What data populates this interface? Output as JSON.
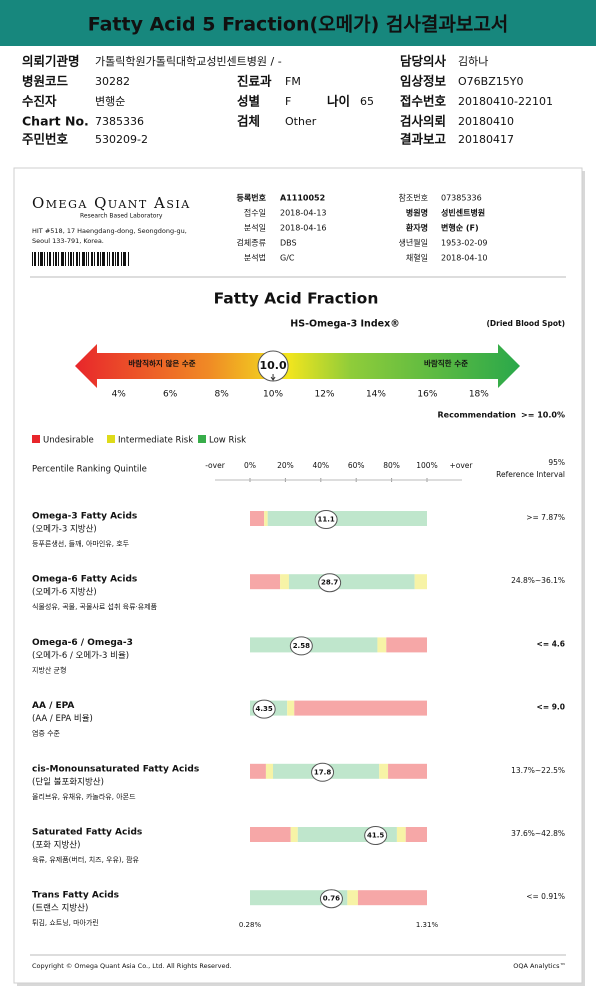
{
  "header": {
    "title": "Fatty Acid 5 Fraction(오메가) 검사결과보고서"
  },
  "info": [
    {
      "label": "의뢰기관명",
      "value": "가톨릭학원가톨릭대학교성빈센트병원 / -"
    },
    {
      "label": "담당의사",
      "value": "김하나"
    },
    {
      "label": "병원코드",
      "value": "30282"
    },
    {
      "label": "진료과",
      "value": "FM"
    },
    {
      "label": "임상정보",
      "value": "O76BZ15Y0"
    },
    {
      "label": "수진자",
      "value": "변행순"
    },
    {
      "label": "성별",
      "value": "F"
    },
    {
      "label": "나이",
      "value": "65"
    },
    {
      "label": "접수번호",
      "value": "20180410-22101"
    },
    {
      "label": "Chart No.",
      "value": "7385336"
    },
    {
      "label": "검체",
      "value": "Other"
    },
    {
      "label": "검사의뢰",
      "value": "20180410"
    },
    {
      "label": "주민번호",
      "value": "530209-2"
    },
    {
      "label": "결과보고",
      "value": "20180417"
    }
  ],
  "report": {
    "logo": "Omega Quant Asia",
    "tagline": "Research Based Laboratory",
    "address": [
      "HIT #518, 17 Haengdang-dong, Seongdong-gu,",
      "Seoul 133-791, Korea."
    ],
    "fields_left": [
      {
        "label": "등록번호",
        "value": "A1110052"
      },
      {
        "label": "접수일",
        "value": "2018-04-13"
      },
      {
        "label": "분석일",
        "value": "2018-04-16"
      },
      {
        "label": "검체종류",
        "value": "DBS"
      },
      {
        "label": "분석법",
        "value": "G/C"
      }
    ],
    "fields_right": [
      {
        "label": "참조번호",
        "value": "07385336"
      },
      {
        "label": "병원명",
        "value": "성빈센트병원"
      },
      {
        "label": "환자명",
        "value": "변행순 (F)"
      },
      {
        "label": "생년월일",
        "value": "1953-02-09"
      },
      {
        "label": "채혈일",
        "value": "2018-04-10"
      }
    ],
    "title": "Fatty Acid Fraction",
    "index_title": "HS-Omega-3 Index®",
    "specimen": "(Dried Blood Spot)",
    "index": {
      "value": 10,
      "value_label": "10.0",
      "xlim": [
        2.3,
        19.6
      ],
      "ticks": [
        {
          "value": 4,
          "label": "4%"
        },
        {
          "value": 6,
          "label": "6%"
        },
        {
          "value": 8,
          "label": "8%"
        },
        {
          "value": 10,
          "label": "10%"
        },
        {
          "value": 12,
          "label": "12%"
        },
        {
          "value": 14,
          "label": "14%"
        },
        {
          "value": 16,
          "label": "16%"
        },
        {
          "value": 18,
          "label": "18%"
        }
      ],
      "low_label": "바람직하지 않은 수준",
      "high_label": "바람직한 수준"
    },
    "recommendation": {
      "label": "Recommendation",
      "value": ">= 10.0%"
    },
    "legend": [
      {
        "name": "Undesirable",
        "color": "#e8262b"
      },
      {
        "name": "Intermediate Risk",
        "color": "#dedb1a"
      },
      {
        "name": "Low Risk",
        "color": "#38ad4a"
      }
    ],
    "percentile_scale": {
      "title": "Percentile Ranking Quintile",
      "lower_label": "-over",
      "upper_label": "+over",
      "ticks": [
        {
          "value": 0,
          "label": "0%"
        },
        {
          "value": 20,
          "label": "20%"
        },
        {
          "value": 40,
          "label": "40%"
        },
        {
          "value": 60,
          "label": "60%"
        },
        {
          "value": 80,
          "label": "80%"
        },
        {
          "value": 100,
          "label": "100%"
        }
      ],
      "reference_title": [
        "95%",
        "Reference Interval"
      ]
    },
    "rows": [
      {
        "name": "Omega-3 Fatty Acids",
        "name_ko": "(오메가-3 지방산)",
        "foods": "등푸른생선, 들깨, 아마인유, 호두",
        "value": "11.1",
        "percentile": 43,
        "reference": ">= 7.87%",
        "zones": [
          {
            "color": "#f6a7a7",
            "from": 0,
            "to": 8
          },
          {
            "color": "#f7f3a6",
            "from": 8,
            "to": 10
          },
          {
            "color": "#bfe6cc",
            "from": 10,
            "to": 100
          }
        ]
      },
      {
        "name": "Omega-6 Fatty Acids",
        "name_ko": "(오메가-6 지방산)",
        "foods": "식물성유, 곡물, 곡물사료 섭취 육류·유제품",
        "value": "28.7",
        "percentile": 45,
        "reference": "24.8%~36.1%",
        "zones": [
          {
            "color": "#f6a7a7",
            "from": 0,
            "to": 17
          },
          {
            "color": "#f7f3a6",
            "from": 17,
            "to": 22
          },
          {
            "color": "#bfe6cc",
            "from": 22,
            "to": 93
          },
          {
            "color": "#f7f3a6",
            "from": 93,
            "to": 100
          }
        ]
      },
      {
        "name": "Omega-6 / Omega-3",
        "name_ko": "(오메가-6 / 오메가-3 비율)",
        "foods": "지방산 균형",
        "value": "2.58",
        "percentile": 29,
        "reference": "<= 4.6",
        "zones": [
          {
            "color": "#bfe6cc",
            "from": 0,
            "to": 72
          },
          {
            "color": "#f7f3a6",
            "from": 72,
            "to": 77
          },
          {
            "color": "#f6a7a7",
            "from": 77,
            "to": 100
          }
        ]
      },
      {
        "name": "AA / EPA",
        "name_ko": "(AA / EPA 비율)",
        "foods": "염증 수준",
        "value": "4.35",
        "percentile": 8,
        "reference": "<= 9.0",
        "zones": [
          {
            "color": "#bfe6cc",
            "from": 0,
            "to": 21
          },
          {
            "color": "#f7f3a6",
            "from": 21,
            "to": 25
          },
          {
            "color": "#f6a7a7",
            "from": 25,
            "to": 100
          }
        ]
      },
      {
        "name": "cis-Monounsaturated Fatty Acids",
        "name_ko": "(단일 불포화지방산)",
        "foods": "올리브유, 유채유, 카놀라유, 아몬드",
        "value": "17.8",
        "percentile": 41,
        "reference": "13.7%~22.5%",
        "zones": [
          {
            "color": "#f6a7a7",
            "from": 0,
            "to": 9
          },
          {
            "color": "#f7f3a6",
            "from": 9,
            "to": 13
          },
          {
            "color": "#bfe6cc",
            "from": 13,
            "to": 73
          },
          {
            "color": "#f7f3a6",
            "from": 73,
            "to": 78
          },
          {
            "color": "#f6a7a7",
            "from": 78,
            "to": 100
          }
        ]
      },
      {
        "name": "Saturated Fatty Acids",
        "name_ko": "(포화 지방산)",
        "foods": "육류, 유제품(버터, 치즈, 우유), 팜유",
        "value": "41.5",
        "percentile": 71,
        "reference": "37.6%~42.8%",
        "zones": [
          {
            "color": "#f6a7a7",
            "from": 0,
            "to": 23
          },
          {
            "color": "#f7f3a6",
            "from": 23,
            "to": 27
          },
          {
            "color": "#bfe6cc",
            "from": 27,
            "to": 83
          },
          {
            "color": "#f7f3a6",
            "from": 83,
            "to": 88
          },
          {
            "color": "#f6a7a7",
            "from": 88,
            "to": 100
          }
        ]
      },
      {
        "name": "Trans Fatty Acids",
        "name_ko": "(트랜스 지방산)",
        "foods": "튀김, 쇼트닝, 마아가린",
        "value": "0.76",
        "percentile": 46,
        "reference": "<= 0.91%",
        "min_label": "0.28%",
        "max_label": "1.31%",
        "zones": [
          {
            "color": "#bfe6cc",
            "from": 0,
            "to": 55
          },
          {
            "color": "#f7f3a6",
            "from": 55,
            "to": 61
          },
          {
            "color": "#f6a7a7",
            "from": 61,
            "to": 100
          }
        ]
      }
    ],
    "footer_left": "Copyright © Omega Quant Asia Co., Ltd.  All Rights Reserved.",
    "footer_right": "OQA Analytics™"
  }
}
